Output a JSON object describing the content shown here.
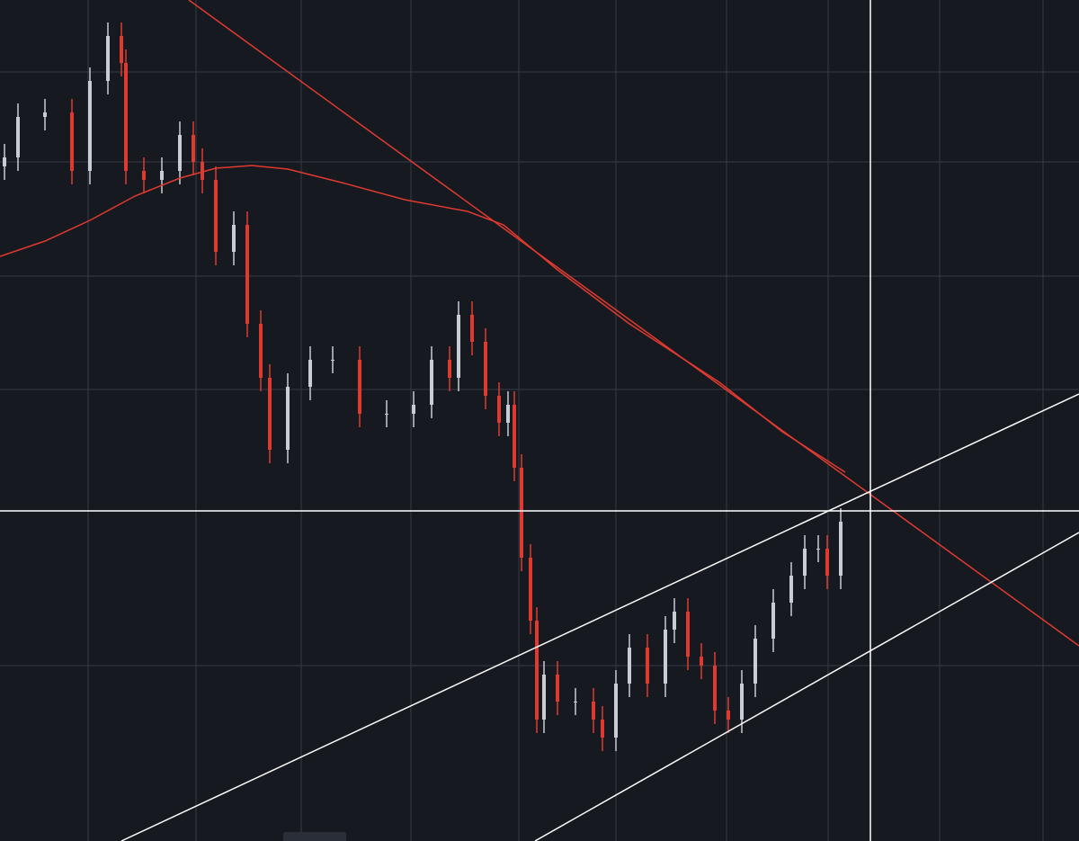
{
  "chart_data": {
    "type": "ohlc",
    "background": "#161a20",
    "up_color": "#c9ccd3",
    "down_color": "#e03a30",
    "grid": true,
    "grid_color": "#363a45",
    "xlim": [
      0,
      1200
    ],
    "ylim": [
      0,
      935
    ],
    "xticks": [
      98,
      218,
      335,
      457,
      577,
      685,
      808,
      921,
      1045,
      1160
    ],
    "yticks": [
      195,
      502,
      628,
      755,
      855
    ],
    "x": [
      5,
      20,
      50,
      80,
      100,
      120,
      135,
      140,
      160,
      180,
      200,
      215,
      225,
      240,
      260,
      275,
      290,
      300,
      320,
      345,
      370,
      400,
      430,
      460,
      480,
      500,
      510,
      525,
      540,
      555,
      565,
      572,
      580,
      590,
      597,
      605,
      620,
      640,
      660,
      670,
      685,
      700,
      720,
      740,
      750,
      765,
      780,
      795,
      810,
      825,
      840,
      860,
      880,
      895,
      910,
      920,
      935
    ],
    "open": [
      750,
      760,
      805,
      810,
      745,
      845,
      895,
      865,
      745,
      735,
      745,
      785,
      755,
      735,
      655,
      685,
      575,
      515,
      435,
      505,
      535,
      535,
      475,
      475,
      485,
      535,
      515,
      585,
      555,
      495,
      465,
      485,
      415,
      315,
      245,
      135,
      185,
      155,
      155,
      135,
      115,
      175,
      215,
      175,
      235,
      255,
      205,
      195,
      145,
      135,
      175,
      225,
      265,
      295,
      325,
      325,
      295
    ],
    "high": [
      775,
      820,
      825,
      825,
      860,
      910,
      910,
      880,
      760,
      760,
      800,
      800,
      770,
      750,
      700,
      700,
      590,
      530,
      520,
      550,
      550,
      550,
      490,
      500,
      550,
      550,
      600,
      600,
      570,
      510,
      500,
      500,
      430,
      330,
      260,
      200,
      200,
      170,
      170,
      150,
      190,
      230,
      230,
      250,
      270,
      270,
      220,
      210,
      160,
      190,
      240,
      280,
      310,
      340,
      340,
      340,
      370
    ],
    "low": [
      735,
      745,
      790,
      730,
      730,
      830,
      850,
      730,
      720,
      720,
      730,
      740,
      720,
      640,
      640,
      560,
      500,
      420,
      420,
      490,
      520,
      460,
      460,
      460,
      470,
      500,
      500,
      540,
      480,
      450,
      450,
      400,
      300,
      230,
      120,
      120,
      140,
      140,
      120,
      100,
      100,
      160,
      160,
      160,
      220,
      190,
      180,
      130,
      120,
      120,
      160,
      210,
      250,
      280,
      310,
      280,
      280
    ],
    "close": [
      760,
      805,
      810,
      745,
      845,
      895,
      865,
      745,
      735,
      745,
      785,
      755,
      735,
      655,
      685,
      575,
      515,
      435,
      505,
      535,
      535,
      475,
      475,
      485,
      535,
      515,
      585,
      555,
      495,
      465,
      485,
      415,
      315,
      245,
      135,
      185,
      155,
      155,
      135,
      115,
      175,
      215,
      175,
      235,
      255,
      205,
      195,
      145,
      135,
      175,
      225,
      265,
      295,
      325,
      325,
      295,
      355
    ],
    "moving_average": {
      "color": "#e03a30",
      "x": [
        0,
        50,
        100,
        150,
        200,
        240,
        280,
        320,
        380,
        450,
        520,
        560,
        620,
        700,
        800,
        870,
        940
      ],
      "values": [
        650,
        667,
        690,
        717,
        737,
        748,
        751,
        747,
        732,
        713,
        700,
        685,
        635,
        575,
        510,
        455,
        410
      ]
    },
    "drawings": [
      {
        "color": "#e03a30",
        "x": [
          210,
          1200
        ],
        "y": [
          935,
          217
        ]
      },
      {
        "color": "#ffffff",
        "x": [
          135,
          1200
        ],
        "y": [
          0,
          497
        ]
      },
      {
        "color": "#ffffff",
        "x": [
          595,
          1200
        ],
        "y": [
          0,
          343
        ]
      },
      {
        "color": "#ffffff",
        "x": [
          0,
          1200
        ],
        "y": [
          367,
          367
        ]
      },
      {
        "color": "#ffffff",
        "x": [
          968,
          968
        ],
        "y": [
          0,
          935
        ]
      }
    ]
  }
}
